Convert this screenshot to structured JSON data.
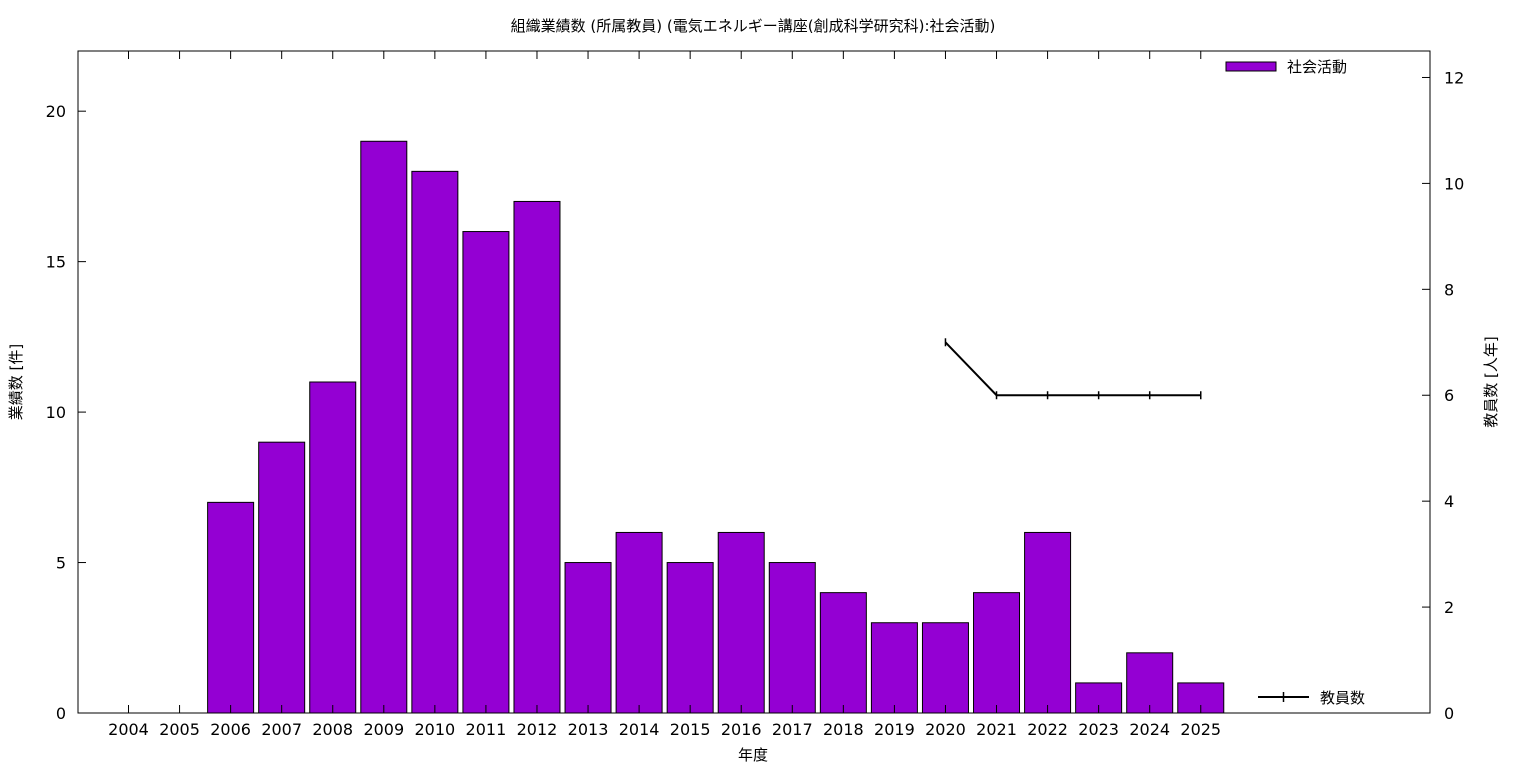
{
  "chart_data": {
    "type": "bar",
    "title": "組織業績数 (所属教員) (電気エネルギー講座(創成科学研究科):社会活動)",
    "xlabel": "年度",
    "ylabel": "業績数 [件]",
    "y2label": "教員数 [人年]",
    "categories": [
      "2004",
      "2005",
      "2006",
      "2007",
      "2008",
      "2009",
      "2010",
      "2011",
      "2012",
      "2013",
      "2014",
      "2015",
      "2016",
      "2017",
      "2018",
      "2019",
      "2020",
      "2021",
      "2022",
      "2023",
      "2024",
      "2025"
    ],
    "series": [
      {
        "name": "社会活動",
        "type": "bar",
        "axis": "left",
        "color": "#9400d3",
        "values": [
          0,
          0,
          7,
          9,
          11,
          19,
          18,
          16,
          17,
          5,
          6,
          5,
          6,
          5,
          4,
          3,
          3,
          4,
          6,
          1,
          2,
          1
        ]
      },
      {
        "name": "教員数",
        "type": "line",
        "axis": "right",
        "color": "#000000",
        "values": [
          null,
          null,
          null,
          null,
          null,
          null,
          null,
          null,
          null,
          null,
          null,
          null,
          null,
          null,
          null,
          null,
          7,
          6,
          6,
          6,
          6,
          6
        ]
      }
    ],
    "ylim": [
      0,
      22
    ],
    "yticks": [
      0,
      5,
      10,
      15,
      20
    ],
    "y2lim": [
      0,
      12.5
    ],
    "y2ticks": [
      0,
      2,
      4,
      6,
      8,
      10,
      12
    ],
    "grid": false,
    "legend": [
      "top-right",
      "bottom-right"
    ]
  }
}
